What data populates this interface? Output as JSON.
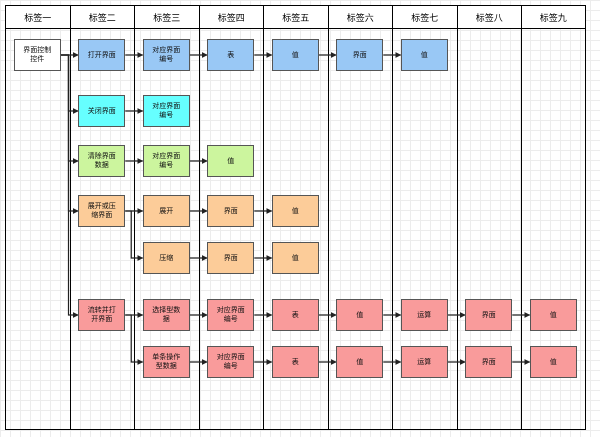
{
  "colors": {
    "blue": "#99c8f5",
    "cyan": "#66ffff",
    "green": "#ccf59e",
    "orange": "#fccc99",
    "red": "#f99b9b",
    "white": "#ffffff"
  },
  "lanes": [
    "标签一",
    "标签二",
    "标签三",
    "标签四",
    "标签五",
    "标签六",
    "标签七",
    "标签八",
    "标签九"
  ],
  "nodes": [
    {
      "id": "ui-control",
      "label": "界面控制\n控件",
      "lane": 0,
      "row": 0,
      "color": "white"
    },
    {
      "id": "open-ui",
      "label": "打开界面",
      "lane": 1,
      "row": 0,
      "color": "blue"
    },
    {
      "id": "open-ui-id",
      "label": "对应界面\n编号",
      "lane": 2,
      "row": 0,
      "color": "blue"
    },
    {
      "id": "open-table",
      "label": "表",
      "lane": 3,
      "row": 0,
      "color": "blue"
    },
    {
      "id": "open-value-1",
      "label": "值",
      "lane": 4,
      "row": 0,
      "color": "blue"
    },
    {
      "id": "open-screen",
      "label": "界面",
      "lane": 5,
      "row": 0,
      "color": "blue"
    },
    {
      "id": "open-value-2",
      "label": "值",
      "lane": 6,
      "row": 0,
      "color": "blue"
    },
    {
      "id": "close-ui",
      "label": "关闭界面",
      "lane": 1,
      "row": 1,
      "color": "cyan"
    },
    {
      "id": "close-ui-id",
      "label": "对应界面\n编号",
      "lane": 2,
      "row": 1,
      "color": "cyan"
    },
    {
      "id": "clear-ui",
      "label": "清除界面\n数据",
      "lane": 1,
      "row": 2,
      "color": "green"
    },
    {
      "id": "clear-ui-id",
      "label": "对应界面\n编号",
      "lane": 2,
      "row": 2,
      "color": "green"
    },
    {
      "id": "clear-value",
      "label": "值",
      "lane": 3,
      "row": 2,
      "color": "green"
    },
    {
      "id": "toggle-ui",
      "label": "展开或压\n缩界面",
      "lane": 1,
      "row": 3,
      "color": "orange"
    },
    {
      "id": "expand",
      "label": "展开",
      "lane": 2,
      "row": 3,
      "color": "orange"
    },
    {
      "id": "expand-screen",
      "label": "界面",
      "lane": 3,
      "row": 3,
      "color": "orange"
    },
    {
      "id": "expand-value",
      "label": "值",
      "lane": 4,
      "row": 3,
      "color": "orange"
    },
    {
      "id": "collapse",
      "label": "压缩",
      "lane": 2,
      "row": 4,
      "color": "orange"
    },
    {
      "id": "collapse-screen",
      "label": "界面",
      "lane": 3,
      "row": 4,
      "color": "orange"
    },
    {
      "id": "collapse-value",
      "label": "值",
      "lane": 4,
      "row": 4,
      "color": "orange"
    },
    {
      "id": "flow-open",
      "label": "流转并打\n开界面",
      "lane": 1,
      "row": 5,
      "color": "red"
    },
    {
      "id": "select-data",
      "label": "选择型数\n据",
      "lane": 2,
      "row": 5,
      "color": "red"
    },
    {
      "id": "select-ui-id",
      "label": "对应界面\n编号",
      "lane": 3,
      "row": 5,
      "color": "red"
    },
    {
      "id": "select-table",
      "label": "表",
      "lane": 4,
      "row": 5,
      "color": "red"
    },
    {
      "id": "select-value-1",
      "label": "值",
      "lane": 5,
      "row": 5,
      "color": "red"
    },
    {
      "id": "select-op",
      "label": "运算",
      "lane": 6,
      "row": 5,
      "color": "red"
    },
    {
      "id": "select-screen",
      "label": "界面",
      "lane": 7,
      "row": 5,
      "color": "red"
    },
    {
      "id": "select-value-2",
      "label": "值",
      "lane": 8,
      "row": 5,
      "color": "red"
    },
    {
      "id": "single-data",
      "label": "单条操作\n型数据",
      "lane": 2,
      "row": 6,
      "color": "red"
    },
    {
      "id": "single-ui-id",
      "label": "对应界面\n编号",
      "lane": 3,
      "row": 6,
      "color": "red"
    },
    {
      "id": "single-table",
      "label": "表",
      "lane": 4,
      "row": 6,
      "color": "red"
    },
    {
      "id": "single-value-1",
      "label": "值",
      "lane": 5,
      "row": 6,
      "color": "red"
    },
    {
      "id": "single-op",
      "label": "运算",
      "lane": 6,
      "row": 6,
      "color": "red"
    },
    {
      "id": "single-screen",
      "label": "界面",
      "lane": 7,
      "row": 6,
      "color": "red"
    },
    {
      "id": "single-value-2",
      "label": "值",
      "lane": 8,
      "row": 6,
      "color": "red"
    }
  ],
  "edges": [
    [
      "ui-control",
      "open-ui"
    ],
    [
      "ui-control",
      "close-ui"
    ],
    [
      "ui-control",
      "clear-ui"
    ],
    [
      "ui-control",
      "toggle-ui"
    ],
    [
      "ui-control",
      "flow-open"
    ],
    [
      "open-ui",
      "open-ui-id"
    ],
    [
      "open-ui-id",
      "open-table"
    ],
    [
      "open-table",
      "open-value-1"
    ],
    [
      "open-value-1",
      "open-screen"
    ],
    [
      "open-screen",
      "open-value-2"
    ],
    [
      "close-ui",
      "close-ui-id"
    ],
    [
      "clear-ui",
      "clear-ui-id"
    ],
    [
      "clear-ui-id",
      "clear-value"
    ],
    [
      "toggle-ui",
      "expand"
    ],
    [
      "toggle-ui",
      "collapse"
    ],
    [
      "expand",
      "expand-screen"
    ],
    [
      "expand-screen",
      "expand-value"
    ],
    [
      "collapse",
      "collapse-screen"
    ],
    [
      "collapse-screen",
      "collapse-value"
    ],
    [
      "flow-open",
      "select-data"
    ],
    [
      "flow-open",
      "single-data"
    ],
    [
      "select-data",
      "select-ui-id"
    ],
    [
      "select-ui-id",
      "select-table"
    ],
    [
      "select-table",
      "select-value-1"
    ],
    [
      "select-value-1",
      "select-op"
    ],
    [
      "select-op",
      "select-screen"
    ],
    [
      "select-screen",
      "select-value-2"
    ],
    [
      "single-data",
      "single-ui-id"
    ],
    [
      "single-ui-id",
      "single-table"
    ],
    [
      "single-table",
      "single-value-1"
    ],
    [
      "single-value-1",
      "single-op"
    ],
    [
      "single-op",
      "single-screen"
    ],
    [
      "single-screen",
      "single-value-2"
    ]
  ]
}
